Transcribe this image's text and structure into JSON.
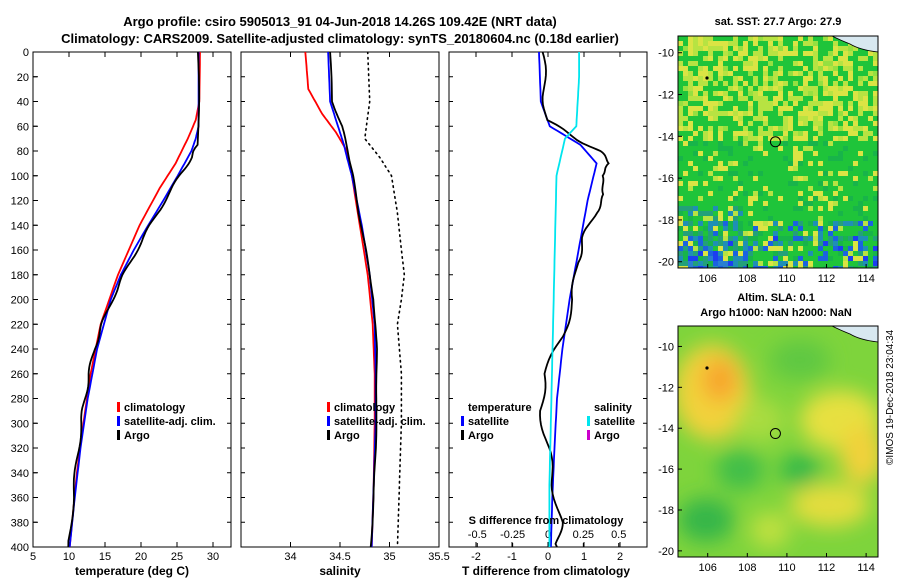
{
  "header": {
    "title_line1": "Argo profile: csiro 5905013_91 04-Jun-2018 14.26S 109.42E (NRT data)",
    "title_line2": "Climatology: CARS2009. Satellite-adjusted climatology: synTS_20180604.nc (0.18d earlier)"
  },
  "footer": {
    "stamp": "©IMOS 19-Dec-2018 23:04:34"
  },
  "colors": {
    "climatology": "#ff0000",
    "satellite": "#0000ff",
    "argo": "#000000",
    "sat_salinity": "#00e5ee",
    "argo_salinity": "#cc00cc"
  },
  "chart_data": [
    {
      "type": "line",
      "name": "temperature",
      "xlabel": "temperature (deg C)",
      "ylabel": "",
      "xlim": [
        5,
        32.5
      ],
      "ylim": [
        400,
        0
      ],
      "xticks": [
        "5",
        "10",
        "15",
        "20",
        "25",
        "30"
      ],
      "xtick_values": [
        5,
        10,
        15,
        20,
        25,
        30
      ],
      "yticks": [
        "0",
        "20",
        "40",
        "60",
        "80",
        "100",
        "120",
        "140",
        "160",
        "180",
        "200",
        "220",
        "240",
        "260",
        "280",
        "300",
        "320",
        "340",
        "360",
        "380",
        "400"
      ],
      "ytick_values": [
        0,
        20,
        40,
        60,
        80,
        100,
        120,
        140,
        160,
        180,
        200,
        220,
        240,
        260,
        280,
        300,
        320,
        340,
        360,
        380,
        400
      ],
      "legend": [
        "climatology",
        "satellite-adj. clim.",
        "Argo"
      ],
      "series": [
        {
          "name": "climatology",
          "color": "#ff0000",
          "depth": [
            0,
            40,
            55,
            70,
            90,
            110,
            140,
            180,
            220,
            260,
            300,
            340,
            400
          ],
          "values": [
            28.2,
            28.1,
            27.6,
            26.5,
            24.8,
            22.6,
            19.8,
            16.8,
            14.4,
            13.0,
            12.0,
            11.1,
            10.1
          ]
        },
        {
          "name": "satellite-adj. clim.",
          "color": "#0000ff",
          "depth": [
            0,
            60,
            70,
            80,
            100,
            120,
            140,
            160,
            180,
            200,
            240,
            280,
            320,
            360,
            400
          ],
          "values": [
            28.0,
            28.0,
            27.6,
            27.0,
            25.1,
            23.1,
            21.0,
            19.0,
            17.2,
            15.8,
            13.9,
            12.6,
            11.6,
            10.8,
            10.1
          ]
        },
        {
          "name": "Argo",
          "color": "#000000",
          "depth": [
            0,
            75,
            85,
            100,
            120,
            140,
            160,
            180,
            200,
            220,
            240,
            260,
            280,
            300,
            330,
            360,
            400
          ],
          "values": [
            27.9,
            27.9,
            27.0,
            25.4,
            23.3,
            21.3,
            19.4,
            17.6,
            16.0,
            14.6,
            13.5,
            12.8,
            12.2,
            11.7,
            11.1,
            10.6,
            9.9
          ]
        }
      ]
    },
    {
      "type": "line",
      "name": "salinity",
      "xlabel": "salinity",
      "xlim": [
        33.5,
        35.5
      ],
      "ylim": [
        400,
        0
      ],
      "xticks": [
        "34",
        "34.5",
        "35",
        "35.5"
      ],
      "xtick_values": [
        34,
        34.5,
        35,
        35.5
      ],
      "legend": [
        "climatology",
        "satellite-adj. clim.",
        "Argo"
      ],
      "series": [
        {
          "name": "climatology",
          "color": "#ff0000",
          "depth": [
            0,
            30,
            50,
            65,
            80,
            100,
            140,
            180,
            220,
            260,
            300,
            350,
            400
          ],
          "values": [
            34.15,
            34.18,
            34.32,
            34.46,
            34.57,
            34.62,
            34.7,
            34.78,
            34.83,
            34.85,
            34.85,
            34.84,
            34.82
          ]
        },
        {
          "name": "satellite-adj. clim.",
          "color": "#0000ff",
          "depth": [
            0,
            40,
            60,
            75,
            85,
            100,
            140,
            180,
            220,
            260,
            300,
            350,
            400
          ],
          "values": [
            34.38,
            34.4,
            34.48,
            34.54,
            34.57,
            34.62,
            34.72,
            34.8,
            34.85,
            34.86,
            34.86,
            34.84,
            34.82
          ]
        },
        {
          "name": "Argo",
          "color": "#000000",
          "depth": [
            0,
            40,
            60,
            80,
            100,
            130,
            160,
            200,
            240,
            280,
            320,
            360,
            400
          ],
          "values": [
            34.4,
            34.42,
            34.52,
            34.58,
            34.63,
            34.69,
            34.76,
            34.84,
            34.87,
            34.87,
            34.86,
            34.84,
            34.81
          ]
        },
        {
          "name": "satellite (dotted)",
          "color": "#000000",
          "depth": [
            0,
            40,
            70,
            85,
            100,
            130,
            160,
            180,
            200,
            220,
            260,
            300,
            350,
            400
          ],
          "values": [
            34.78,
            34.8,
            34.75,
            34.9,
            35.02,
            35.08,
            35.12,
            35.15,
            35.12,
            35.08,
            35.12,
            35.12,
            35.1,
            35.08
          ]
        }
      ]
    },
    {
      "type": "line",
      "name": "difference from climatology",
      "xlabel": "T difference from climatology",
      "xlabel_top": "S difference from climatology",
      "xlim": [
        -2.75,
        2.75
      ],
      "ylim": [
        400,
        0
      ],
      "xticks": [
        "-2",
        "-1",
        "0",
        "1",
        "2"
      ],
      "xtick_values": [
        -2,
        -1,
        0,
        1,
        2
      ],
      "sticks": [
        "-0.5",
        "-0.25",
        "0",
        "0.25",
        "0.5"
      ],
      "stick_values": [
        -0.5,
        -0.25,
        0,
        0.25,
        0.5
      ],
      "legend_left_title": "temperature",
      "legend_right_title": "salinity",
      "legend": [
        "satellite",
        "Argo",
        "satellite",
        "Argo"
      ],
      "series": [
        {
          "name": "temperature satellite",
          "color": "#0000ff",
          "depth": [
            0,
            40,
            60,
            75,
            90,
            120,
            160,
            200,
            240,
            280,
            320,
            360,
            400
          ],
          "values": [
            -0.25,
            -0.2,
            0.05,
            0.9,
            1.35,
            1.1,
            0.85,
            0.6,
            0.4,
            0.25,
            0.18,
            0.12,
            0.08
          ]
        },
        {
          "name": "temperature Argo",
          "color": "#000000",
          "depth": [
            0,
            30,
            55,
            70,
            80,
            90,
            100,
            115,
            130,
            150,
            170,
            200,
            230,
            260,
            290,
            320,
            350,
            380,
            400
          ],
          "values": [
            -0.15,
            -0.1,
            -0.05,
            0.8,
            1.4,
            1.75,
            1.45,
            1.6,
            1.3,
            1.0,
            0.8,
            0.7,
            0.4,
            -0.1,
            -0.2,
            0.0,
            0.15,
            0.35,
            0.25
          ]
        },
        {
          "name": "salinity satellite",
          "color": "#00e5ee",
          "depth": [
            0,
            20,
            40,
            60,
            70,
            100,
            150,
            200,
            250,
            300,
            350,
            400
          ],
          "values": [
            0.22,
            0.22,
            0.21,
            0.2,
            0.12,
            0.06,
            0.05,
            0.04,
            0.03,
            0.02,
            0.01,
            0.01
          ]
        }
      ]
    },
    {
      "type": "heatmap",
      "name": "satellite SST map",
      "title": "sat. SST: 27.7 Argo: 27.9",
      "xlim": [
        104.5,
        114.6
      ],
      "ylim": [
        -20.3,
        -9.2
      ],
      "xticks": [
        "106",
        "108",
        "110",
        "112",
        "114"
      ],
      "xtick_values": [
        106,
        108,
        110,
        112,
        114
      ],
      "yticks": [
        "-10",
        "-12",
        "-14",
        "-16",
        "-18",
        "-20"
      ],
      "ytick_values": [
        -10,
        -12,
        -14,
        -16,
        -18,
        -20
      ],
      "marker": {
        "lon": 109.42,
        "lat": -14.26
      }
    },
    {
      "type": "heatmap",
      "name": "altimetry SLA map",
      "title": "Altim. SLA: 0.1",
      "subtitle": "Argo h1000: NaN h2000: NaN",
      "xlim": [
        104.5,
        114.6
      ],
      "ylim": [
        -20.3,
        -9.0
      ],
      "xticks": [
        "106",
        "108",
        "110",
        "112",
        "114"
      ],
      "xtick_values": [
        106,
        108,
        110,
        112,
        114
      ],
      "yticks": [
        "-10",
        "-12",
        "-14",
        "-16",
        "-18",
        "-20"
      ],
      "ytick_values": [
        -10,
        -12,
        -14,
        -16,
        -18,
        -20
      ],
      "marker": {
        "lon": 109.42,
        "lat": -14.26
      }
    }
  ]
}
